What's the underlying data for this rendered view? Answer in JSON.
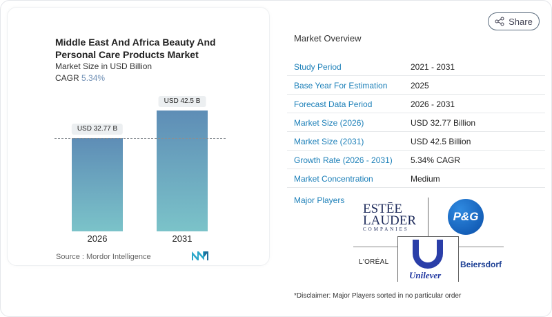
{
  "chart_data": {
    "type": "bar",
    "title": "Middle East And Africa Beauty And Personal Care Products Market",
    "subtitle": "Market Size in USD Billion",
    "cagr_label": "CAGR",
    "cagr_value": "5.34%",
    "categories": [
      "2026",
      "2031"
    ],
    "values": [
      32.77,
      42.5
    ],
    "data_labels": [
      "USD 32.77 B",
      "USD 42.5 B"
    ],
    "ylim": [
      0,
      42.5
    ],
    "grid": false,
    "bar_colors": [
      "#5e8db6",
      "#7bc3c9"
    ],
    "source": "Source :  Mordor Intelligence"
  },
  "share_label": "Share",
  "overview": {
    "title": "Market Overview",
    "rows": [
      {
        "label": "Study Period",
        "value": "2021 - 2031"
      },
      {
        "label": "Base Year For Estimation",
        "value": "2025"
      },
      {
        "label": "Forecast Data Period",
        "value": "2026 - 2031"
      },
      {
        "label": "Market Size (2026)",
        "value": "USD 32.77 Billion"
      },
      {
        "label": "Market Size (2031)",
        "value": "USD 42.5 Billion"
      },
      {
        "label": "Growth Rate (2026 - 2031)",
        "value": "5.34% CAGR"
      },
      {
        "label": "Market Concentration",
        "value": "Medium"
      }
    ],
    "major_players_label": "Major Players",
    "players": [
      "ESTĒE LAUDER COMPANIES",
      "P&G",
      "L'ORÉAL",
      "Unilever",
      "Beiersdorf"
    ],
    "disclaimer": "*Disclaimer: Major Players sorted in no particular order"
  },
  "colors": {
    "label": "#1b7fb8",
    "beiersdorf": "#1c3f94",
    "pg": "#0a5bb5",
    "unilever": "#1f36a0"
  }
}
